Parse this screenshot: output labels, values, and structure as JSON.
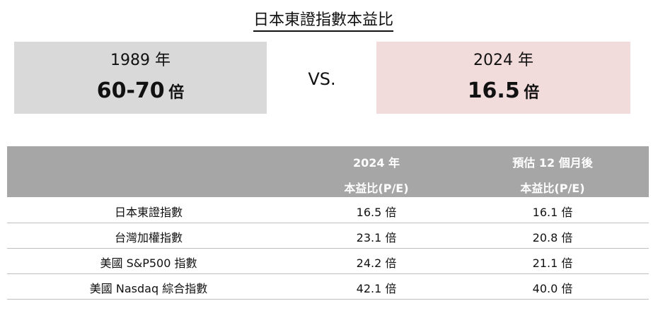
{
  "header": {
    "title": "日本東證指數本益比"
  },
  "comparison": {
    "left": {
      "year": "1989 年",
      "value": "60-70",
      "unit": "倍"
    },
    "separator": "VS.",
    "right": {
      "year": "2024 年",
      "value": "16.5",
      "unit": "倍"
    }
  },
  "table": {
    "columns": [
      [
        "2024 年",
        "本益比(P/E)"
      ],
      [
        "預估 12 個月後",
        "本益比(P/E)"
      ]
    ],
    "rows": [
      [
        "日本東證指數",
        "16.5 倍",
        "16.1 倍"
      ],
      [
        "台灣加權指數",
        "23.1 倍",
        "20.8 倍"
      ],
      [
        "美國 S&P500 指數",
        "24.2 倍",
        "21.1 倍"
      ],
      [
        "美國 Nasdaq 綜合指數",
        "42.1 倍",
        "40.0 倍"
      ]
    ]
  }
}
